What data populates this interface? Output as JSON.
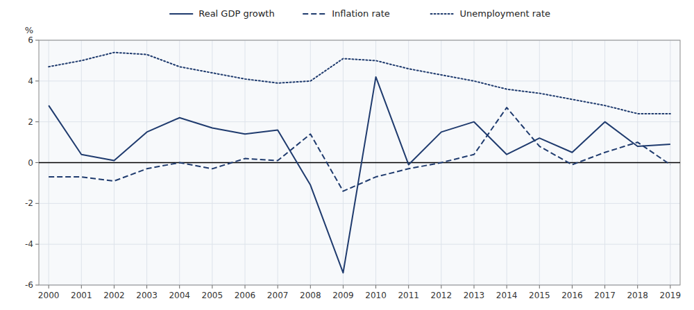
{
  "chart_data": {
    "type": "line",
    "y_label": "%",
    "x": [
      2000,
      2001,
      2002,
      2003,
      2004,
      2005,
      2006,
      2007,
      2008,
      2009,
      2010,
      2011,
      2012,
      2013,
      2014,
      2015,
      2016,
      2017,
      2018,
      2019
    ],
    "xlim": [
      1999.7,
      2019.3
    ],
    "xticks": [
      2000,
      2001,
      2002,
      2003,
      2004,
      2005,
      2006,
      2007,
      2008,
      2009,
      2010,
      2011,
      2012,
      2013,
      2014,
      2015,
      2016,
      2017,
      2018,
      2019
    ],
    "ylim": [
      -6,
      6
    ],
    "yticks": [
      -6,
      -4,
      -2,
      0,
      2,
      4,
      6
    ],
    "grid": true,
    "legend": "top",
    "series": [
      {
        "name": "Real GDP growth",
        "color": "#1f3b6e",
        "line_style": "solid",
        "values": [
          2.8,
          0.4,
          0.1,
          1.5,
          2.2,
          1.7,
          1.4,
          1.6,
          -1.1,
          -5.4,
          4.2,
          -0.1,
          1.5,
          2.0,
          0.4,
          1.2,
          0.5,
          2.0,
          0.8,
          0.9
        ]
      },
      {
        "name": "Inflation rate",
        "color": "#1f3b6e",
        "line_style": "dashed",
        "values": [
          -0.7,
          -0.7,
          -0.9,
          -0.3,
          0.0,
          -0.3,
          0.2,
          0.1,
          1.4,
          -1.4,
          -0.7,
          -0.3,
          0.0,
          0.4,
          2.7,
          0.8,
          -0.1,
          0.5,
          1.0,
          -0.1
        ]
      },
      {
        "name": "Unemployment rate",
        "color": "#1f3b6e",
        "line_style": "dotted",
        "values": [
          4.7,
          5.0,
          5.4,
          5.3,
          4.7,
          4.4,
          4.1,
          3.9,
          4.0,
          5.1,
          5.0,
          4.6,
          4.3,
          4.0,
          3.6,
          3.4,
          3.1,
          2.8,
          2.4,
          2.4
        ]
      }
    ]
  }
}
